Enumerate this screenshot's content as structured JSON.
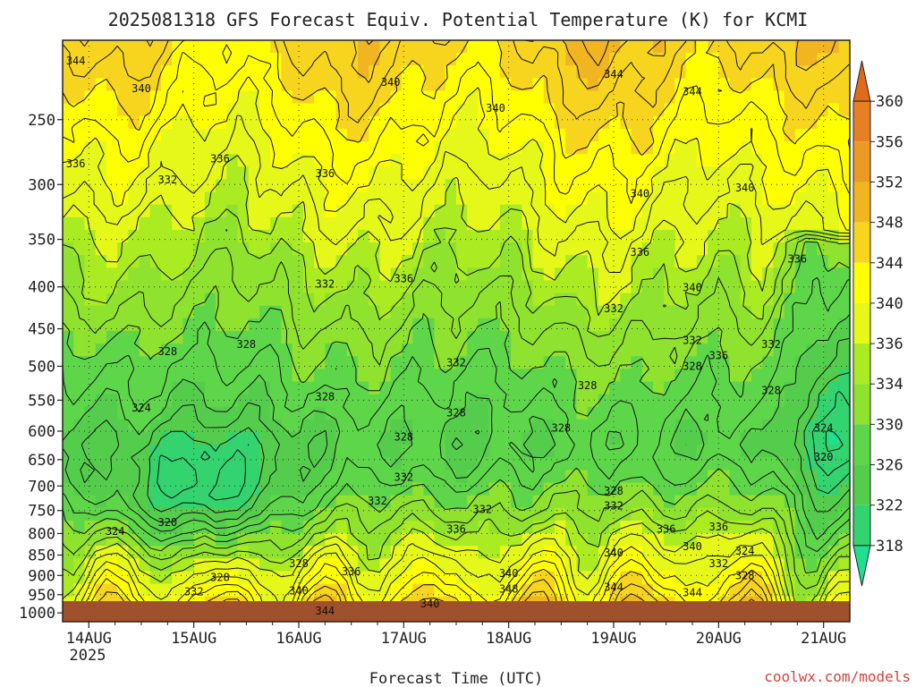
{
  "chart_data": {
    "type": "heatmap",
    "title": "2025081318 GFS Forecast Equiv. Potential Temperature (K) for KCMI",
    "xlabel": "Forecast Time (UTC)",
    "ylabel": "",
    "x_ticks": [
      "14AUG",
      "15AUG",
      "16AUG",
      "17AUG",
      "18AUG",
      "19AUG",
      "20AUG",
      "21AUG"
    ],
    "x_year_label": "2025",
    "x_range": [
      "2025-08-13T18:00Z",
      "2025-08-21T06:00Z"
    ],
    "y_ticks": [
      250,
      300,
      350,
      400,
      450,
      500,
      550,
      600,
      650,
      700,
      750,
      800,
      850,
      900,
      950,
      1000
    ],
    "y_range": [
      1025,
      200
    ],
    "y_scale": "log",
    "grid": true,
    "colorbar": {
      "ticks": [
        318,
        322,
        326,
        330,
        334,
        336,
        340,
        344,
        348,
        352,
        356,
        360
      ],
      "colors": [
        "#1ee08e",
        "#33d36f",
        "#55cd4c",
        "#5ed64a",
        "#8fe22e",
        "#aaeb22",
        "#e6f81a",
        "#ffff00",
        "#f7d51e",
        "#f0b520",
        "#ec9a24",
        "#e68022",
        "#de6a1a"
      ]
    },
    "contour_labels": [
      {
        "time": "2025-08-13T21:00Z",
        "p": 212,
        "value": 344
      },
      {
        "time": "2025-08-14T12:00Z",
        "p": 229,
        "value": 340
      },
      {
        "time": "2025-08-16T21:00Z",
        "p": 225,
        "value": 340
      },
      {
        "time": "2025-08-17T21:00Z",
        "p": 242,
        "value": 340
      },
      {
        "time": "2025-08-19T00:00Z",
        "p": 220,
        "value": 344
      },
      {
        "time": "2025-08-19T18:00Z",
        "p": 231,
        "value": 344
      },
      {
        "time": "2025-08-13T21:00Z",
        "p": 283,
        "value": 336
      },
      {
        "time": "2025-08-15T06:00Z",
        "p": 279,
        "value": 336
      },
      {
        "time": "2025-08-16T06:00Z",
        "p": 291,
        "value": 336
      },
      {
        "time": "2025-08-14T18:00Z",
        "p": 296,
        "value": 332
      },
      {
        "time": "2025-08-19T06:00Z",
        "p": 308,
        "value": 340
      },
      {
        "time": "2025-08-20T06:00Z",
        "p": 303,
        "value": 340
      },
      {
        "time": "2025-08-19T06:00Z",
        "p": 363,
        "value": 336
      },
      {
        "time": "2025-08-20T18:00Z",
        "p": 370,
        "value": 336
      },
      {
        "time": "2025-08-16T06:00Z",
        "p": 397,
        "value": 332
      },
      {
        "time": "2025-08-17T00:00Z",
        "p": 391,
        "value": 336
      },
      {
        "time": "2025-08-19T00:00Z",
        "p": 425,
        "value": 332
      },
      {
        "time": "2025-08-19T18:00Z",
        "p": 401,
        "value": 340
      },
      {
        "time": "2025-08-14T18:00Z",
        "p": 480,
        "value": 328
      },
      {
        "time": "2025-08-15T12:00Z",
        "p": 470,
        "value": 328
      },
      {
        "time": "2025-08-17T12:00Z",
        "p": 495,
        "value": 332
      },
      {
        "time": "2025-08-19T18:00Z",
        "p": 465,
        "value": 332
      },
      {
        "time": "2025-08-19T18:00Z",
        "p": 500,
        "value": 328
      },
      {
        "time": "2025-08-20T00:00Z",
        "p": 485,
        "value": 336
      },
      {
        "time": "2025-08-20T12:00Z",
        "p": 470,
        "value": 332
      },
      {
        "time": "2025-08-18T18:00Z",
        "p": 528,
        "value": 328
      },
      {
        "time": "2025-08-20T12:00Z",
        "p": 535,
        "value": 328
      },
      {
        "time": "2025-08-14T12:00Z",
        "p": 562,
        "value": 324
      },
      {
        "time": "2025-08-16T06:00Z",
        "p": 545,
        "value": 328
      },
      {
        "time": "2025-08-17T12:00Z",
        "p": 570,
        "value": 328
      },
      {
        "time": "2025-08-17T00:00Z",
        "p": 610,
        "value": 328
      },
      {
        "time": "2025-08-18T12:00Z",
        "p": 595,
        "value": 328
      },
      {
        "time": "2025-08-21T00:00Z",
        "p": 595,
        "value": 324
      },
      {
        "time": "2025-08-21T00:00Z",
        "p": 645,
        "value": 320
      },
      {
        "time": "2025-08-17T00:00Z",
        "p": 683,
        "value": 332
      },
      {
        "time": "2025-08-16T18:00Z",
        "p": 730,
        "value": 332
      },
      {
        "time": "2025-08-17T18:00Z",
        "p": 748,
        "value": 332
      },
      {
        "time": "2025-08-19T00:00Z",
        "p": 710,
        "value": 328
      },
      {
        "time": "2025-08-19T00:00Z",
        "p": 740,
        "value": 332
      },
      {
        "time": "2025-08-19T12:00Z",
        "p": 790,
        "value": 336
      },
      {
        "time": "2025-08-20T00:00Z",
        "p": 785,
        "value": 336
      },
      {
        "time": "2025-08-17T12:00Z",
        "p": 790,
        "value": 336
      },
      {
        "time": "2025-08-14T06:00Z",
        "p": 795,
        "value": 324
      },
      {
        "time": "2025-08-14T18:00Z",
        "p": 775,
        "value": 320
      },
      {
        "time": "2025-08-19T00:00Z",
        "p": 845,
        "value": 340
      },
      {
        "time": "2025-08-19T18:00Z",
        "p": 830,
        "value": 340
      },
      {
        "time": "2025-08-20T06:00Z",
        "p": 840,
        "value": 324
      },
      {
        "time": "2025-08-20T00:00Z",
        "p": 870,
        "value": 332
      },
      {
        "time": "2025-08-16T00:00Z",
        "p": 870,
        "value": 328
      },
      {
        "time": "2025-08-16T12:00Z",
        "p": 890,
        "value": 336
      },
      {
        "time": "2025-08-18T00:00Z",
        "p": 895,
        "value": 340
      },
      {
        "time": "2025-08-15T06:00Z",
        "p": 905,
        "value": 328
      },
      {
        "time": "2025-08-20T06:00Z",
        "p": 900,
        "value": 328
      },
      {
        "time": "2025-08-15T00:00Z",
        "p": 942,
        "value": 332
      },
      {
        "time": "2025-08-16T00:00Z",
        "p": 940,
        "value": 340
      },
      {
        "time": "2025-08-18T00:00Z",
        "p": 935,
        "value": 348
      },
      {
        "time": "2025-08-19T00:00Z",
        "p": 930,
        "value": 344
      },
      {
        "time": "2025-08-19T18:00Z",
        "p": 945,
        "value": 344
      },
      {
        "time": "2025-08-16T06:00Z",
        "p": 995,
        "value": 344
      },
      {
        "time": "2025-08-17T06:00Z",
        "p": 975,
        "value": 340
      },
      {
        "time": "2025-08-17T18:00Z",
        "p": 1045,
        "value": 344
      }
    ]
  },
  "credit": "coolwx.com/models"
}
